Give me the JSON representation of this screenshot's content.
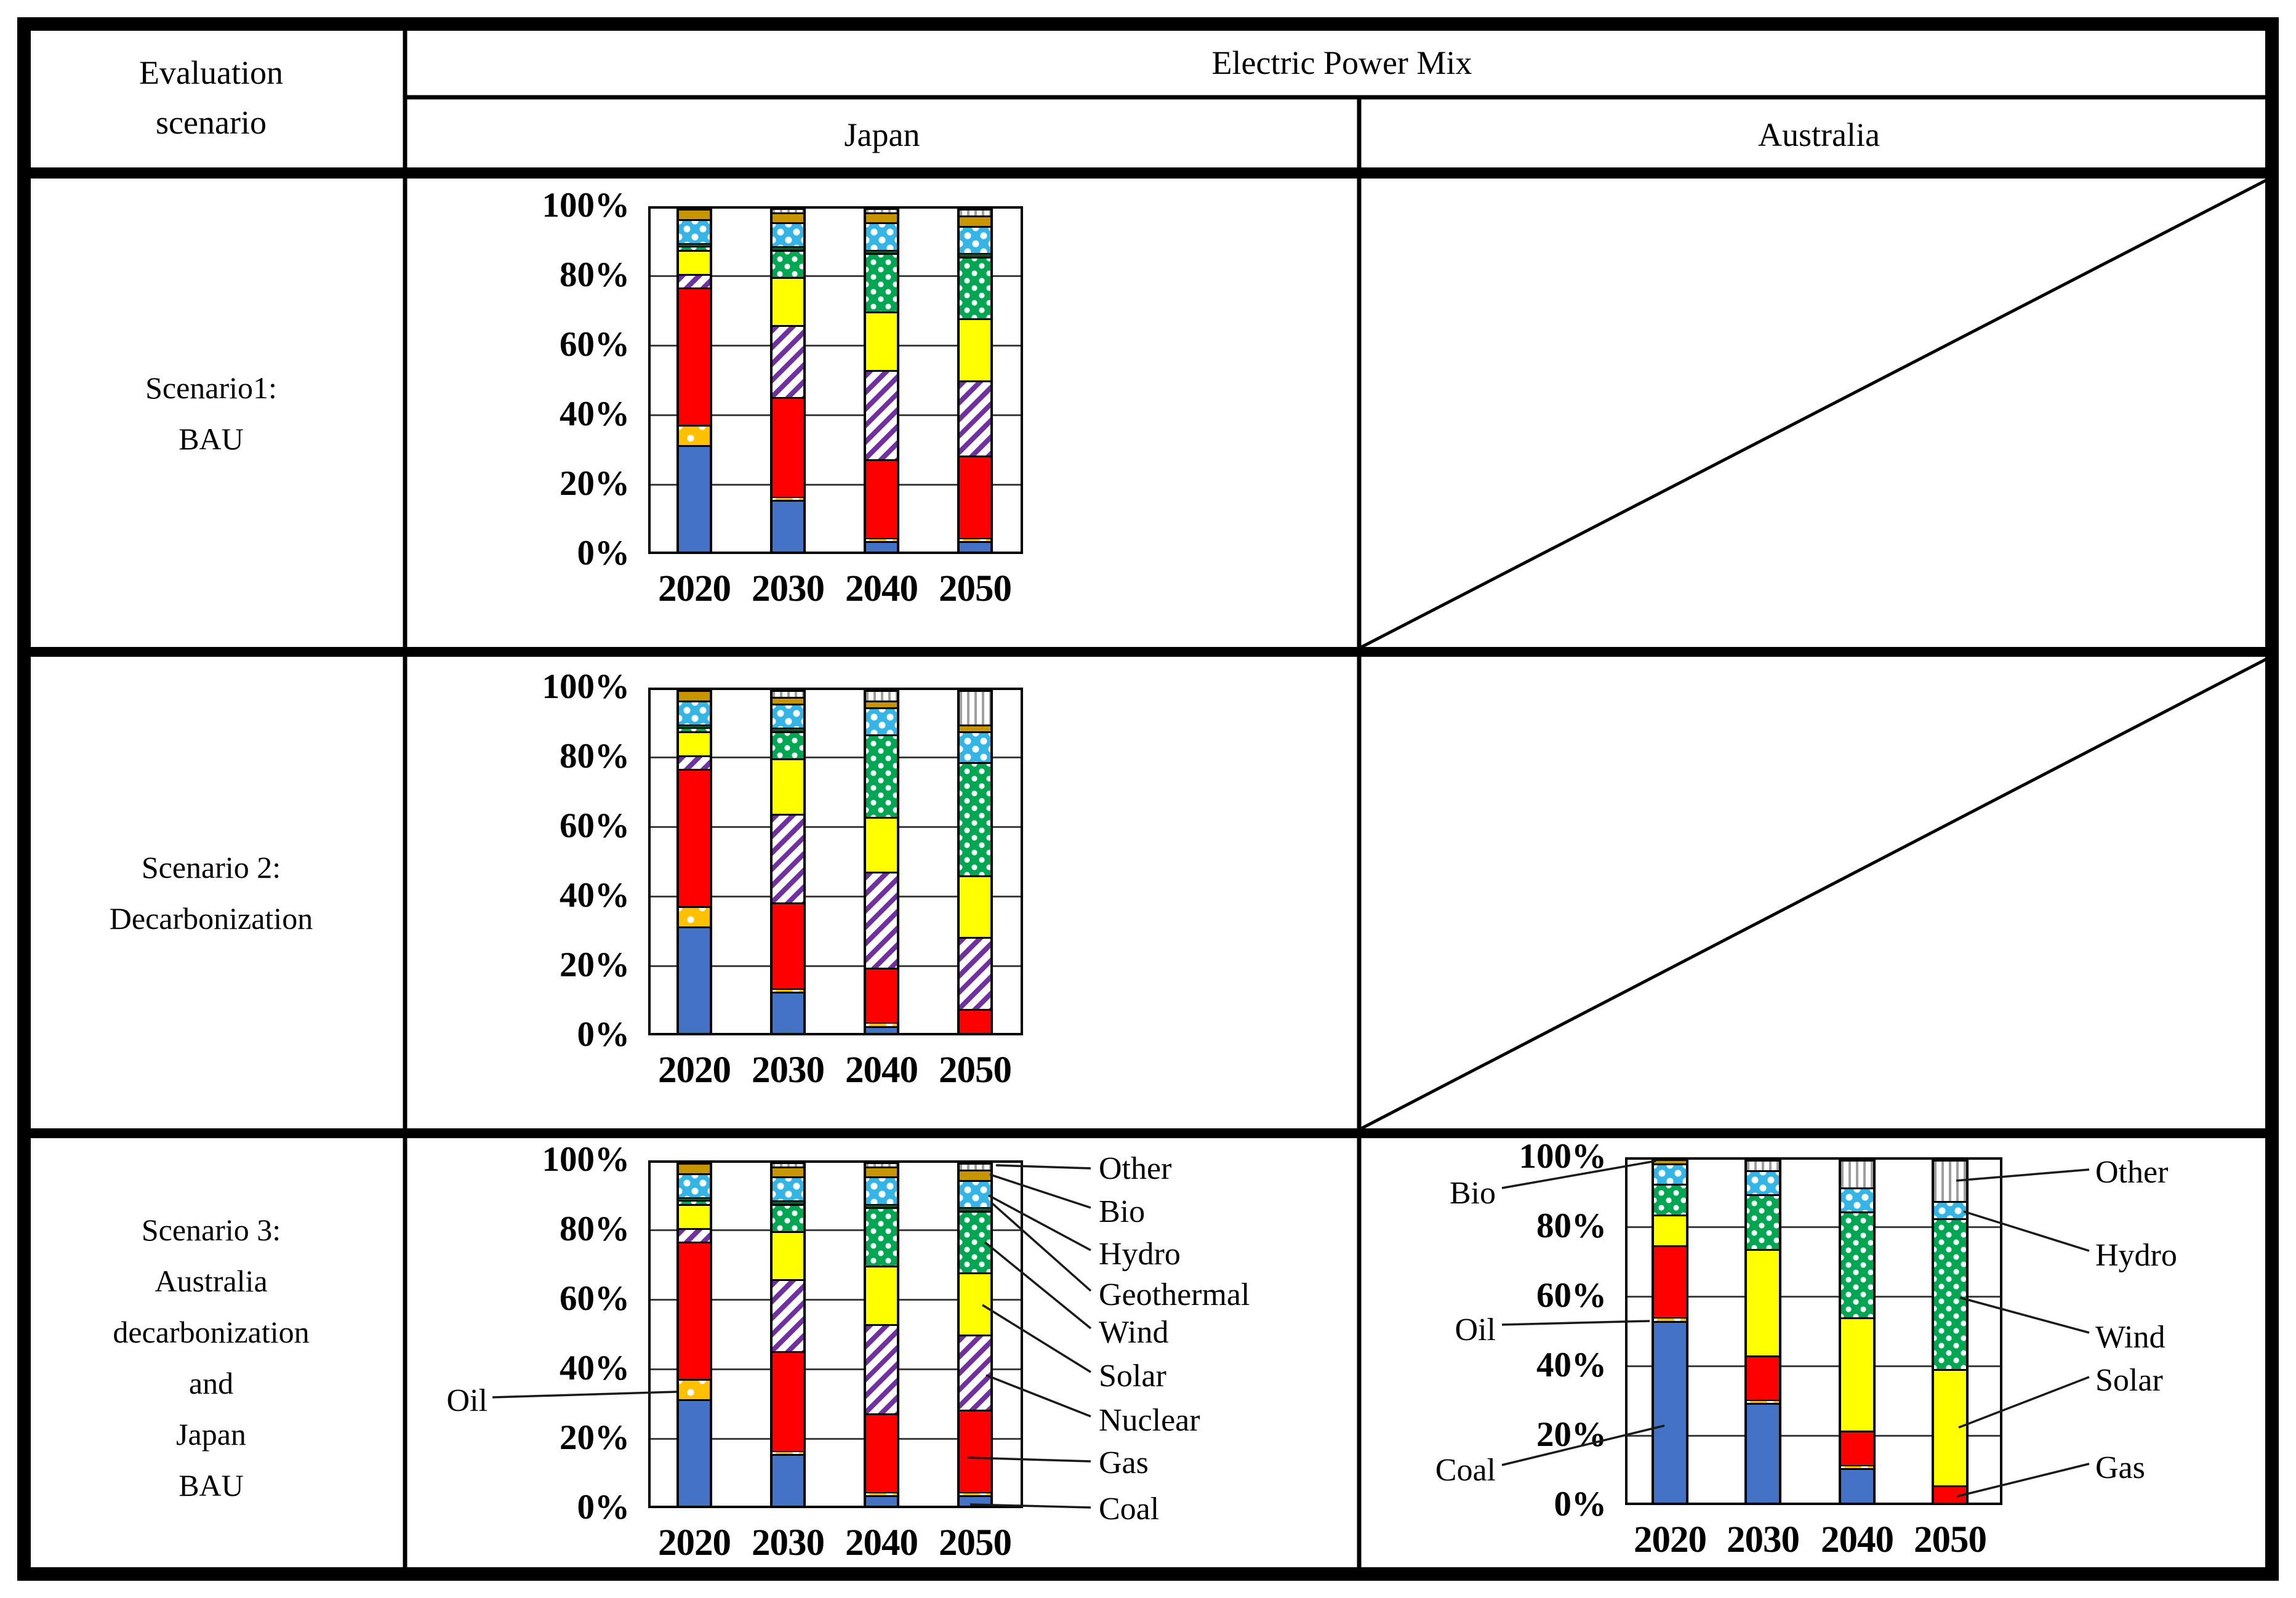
{
  "table": {
    "corner_header": [
      "Evaluation",
      "scenario"
    ],
    "main_header": "Electric Power Mix",
    "sub_headers": [
      "Japan",
      "Australia"
    ],
    "rows": [
      {
        "scenario_lines": [
          "Scenario1:",
          "BAU"
        ],
        "australia_cell": "crossed-out-empty"
      },
      {
        "scenario_lines": [
          "Scenario 2:",
          "Decarbonization"
        ],
        "australia_cell": "crossed-out-empty"
      },
      {
        "scenario_lines": [
          "Scenario 3:",
          "Australia",
          "decarbonization",
          "and",
          "Japan",
          "BAU"
        ],
        "australia_cell": "chart"
      }
    ]
  },
  "axis": {
    "y_ticks": [
      "100%",
      "80%",
      "60%",
      "40%",
      "20%",
      "0%"
    ]
  },
  "legend": {
    "japan_right": [
      "Other",
      "Bio",
      "Hydro",
      "Geothermal",
      "Wind",
      "Solar",
      "Nuclear",
      "Gas",
      "Coal"
    ],
    "japan_left": [
      "Oil"
    ],
    "australia_left": [
      "Bio",
      "Oil",
      "Coal"
    ],
    "australia_right": [
      "Other",
      "Hydro",
      "Wind",
      "Solar",
      "Gas"
    ]
  },
  "colors": {
    "coal": "#4472C4",
    "oil": "#FFC000",
    "gas": "#FF0000",
    "nuclear": "#7030A0",
    "solar": "#FFFF00",
    "wind": "#00A651",
    "geothermal": "#14502A",
    "hydro": "#35B4E6",
    "bio": "#C79500",
    "other_stripe": "#9E9E9E",
    "grid": "#3F3F3F",
    "frame": "#000000"
  },
  "chart_data": [
    {
      "id": "japan-scenario1-bau",
      "type": "bar",
      "stacked": true,
      "title": "Scenario1: BAU - Japan electric power mix",
      "region": "Japan",
      "unit": "%",
      "ylim": [
        0,
        100
      ],
      "grid": true,
      "categories": [
        "2020",
        "2030",
        "2040",
        "2050"
      ],
      "series": [
        {
          "name": "Coal",
          "values": [
            31,
            15,
            3,
            3
          ]
        },
        {
          "name": "Oil",
          "values": [
            6,
            1,
            1,
            1
          ]
        },
        {
          "name": "Gas",
          "values": [
            40,
            29,
            23,
            24
          ]
        },
        {
          "name": "Nuclear",
          "values": [
            4,
            21,
            26,
            22
          ]
        },
        {
          "name": "Solar",
          "values": [
            7,
            14,
            17,
            18
          ]
        },
        {
          "name": "Wind",
          "values": [
            1,
            8,
            17,
            18
          ]
        },
        {
          "name": "Geothermal",
          "values": [
            1,
            1,
            1,
            1
          ]
        },
        {
          "name": "Hydro",
          "values": [
            7,
            7,
            8,
            8
          ]
        },
        {
          "name": "Bio",
          "values": [
            3,
            3,
            3,
            3
          ]
        },
        {
          "name": "Other",
          "values": [
            0,
            1,
            1,
            2
          ]
        }
      ]
    },
    {
      "id": "japan-scenario2-decarbonization",
      "type": "bar",
      "stacked": true,
      "title": "Scenario 2: Decarbonization - Japan electric power mix",
      "region": "Japan",
      "unit": "%",
      "ylim": [
        0,
        100
      ],
      "grid": true,
      "categories": [
        "2020",
        "2030",
        "2040",
        "2050"
      ],
      "series": [
        {
          "name": "Coal",
          "values": [
            31,
            12,
            2,
            0
          ]
        },
        {
          "name": "Oil",
          "values": [
            6,
            1,
            1,
            0
          ]
        },
        {
          "name": "Gas",
          "values": [
            40,
            25,
            16,
            7
          ]
        },
        {
          "name": "Nuclear",
          "values": [
            4,
            26,
            28,
            21
          ]
        },
        {
          "name": "Solar",
          "values": [
            7,
            16,
            16,
            18
          ]
        },
        {
          "name": "Wind",
          "values": [
            1,
            8,
            24,
            33
          ]
        },
        {
          "name": "Geothermal",
          "values": [
            1,
            1,
            0,
            0
          ]
        },
        {
          "name": "Hydro",
          "values": [
            7,
            7,
            8,
            9
          ]
        },
        {
          "name": "Bio",
          "values": [
            3,
            2,
            2,
            2
          ]
        },
        {
          "name": "Other",
          "values": [
            0,
            2,
            3,
            10
          ]
        }
      ]
    },
    {
      "id": "japan-scenario3-bau",
      "type": "bar",
      "stacked": true,
      "title": "Scenario 3: Japan BAU electric power mix",
      "region": "Japan",
      "unit": "%",
      "ylim": [
        0,
        100
      ],
      "grid": true,
      "categories": [
        "2020",
        "2030",
        "2040",
        "2050"
      ],
      "series": [
        {
          "name": "Coal",
          "values": [
            31,
            15,
            3,
            3
          ]
        },
        {
          "name": "Oil",
          "values": [
            6,
            1,
            1,
            1
          ]
        },
        {
          "name": "Gas",
          "values": [
            40,
            29,
            23,
            24
          ]
        },
        {
          "name": "Nuclear",
          "values": [
            4,
            21,
            26,
            22
          ]
        },
        {
          "name": "Solar",
          "values": [
            7,
            14,
            17,
            18
          ]
        },
        {
          "name": "Wind",
          "values": [
            1,
            8,
            17,
            18
          ]
        },
        {
          "name": "Geothermal",
          "values": [
            1,
            1,
            1,
            1
          ]
        },
        {
          "name": "Hydro",
          "values": [
            7,
            7,
            8,
            8
          ]
        },
        {
          "name": "Bio",
          "values": [
            3,
            3,
            3,
            3
          ]
        },
        {
          "name": "Other",
          "values": [
            0,
            1,
            1,
            2
          ]
        }
      ]
    },
    {
      "id": "australia-scenario3-decarbonization",
      "type": "bar",
      "stacked": true,
      "title": "Scenario 3: Australia decarbonization electric power mix",
      "region": "Australia",
      "unit": "%",
      "ylim": [
        0,
        100
      ],
      "grid": true,
      "categories": [
        "2020",
        "2030",
        "2040",
        "2050"
      ],
      "series": [
        {
          "name": "Coal",
          "values": [
            53,
            29,
            10,
            0
          ]
        },
        {
          "name": "Oil",
          "values": [
            1,
            1,
            1,
            0
          ]
        },
        {
          "name": "Gas",
          "values": [
            21,
            13,
            10,
            5
          ]
        },
        {
          "name": "Solar",
          "values": [
            9,
            31,
            33,
            34
          ]
        },
        {
          "name": "Wind",
          "values": [
            9,
            16,
            31,
            44
          ]
        },
        {
          "name": "Hydro",
          "values": [
            6,
            7,
            7,
            5
          ]
        },
        {
          "name": "Bio",
          "values": [
            1,
            0,
            0,
            0
          ]
        },
        {
          "name": "Other",
          "values": [
            0,
            3,
            8,
            12
          ]
        }
      ]
    }
  ]
}
